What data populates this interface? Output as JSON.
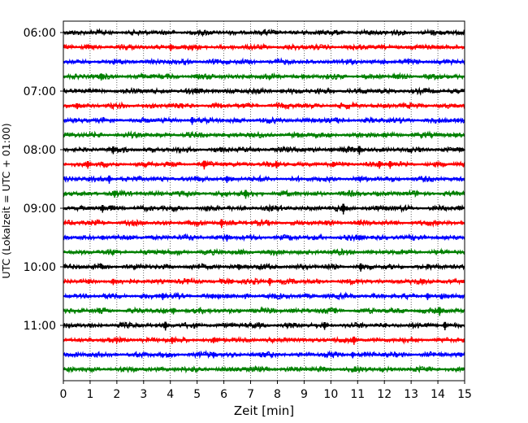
{
  "chart_data": {
    "type": "line",
    "title": "",
    "xlabel": "Zeit  [min]",
    "ylabel": "UTC (Lokalzeit = UTC + 01:00)",
    "xlim": [
      0,
      15
    ],
    "x_ticks": [
      "0",
      "1",
      "2",
      "3",
      "4",
      "5",
      "6",
      "7",
      "8",
      "9",
      "10",
      "11",
      "12",
      "13",
      "14",
      "15"
    ],
    "y_ticks": [
      "06:00",
      "07:00",
      "08:00",
      "09:00",
      "10:00",
      "11:00"
    ],
    "grid": "vertical dotted lines at each minute",
    "trace_colors": [
      "#000000",
      "#ff0000",
      "#0000ff",
      "#008000"
    ],
    "traces": [
      {
        "start": "06:00",
        "color": "#000000",
        "spikes": [
          [
            8.0,
            0.18
          ],
          [
            9.6,
            0.28
          ]
        ]
      },
      {
        "start": "06:15",
        "color": "#ff0000",
        "spikes": [
          [
            4.05,
            0.55
          ],
          [
            4.8,
            0.3
          ],
          [
            14.1,
            0.2
          ]
        ]
      },
      {
        "start": "06:30",
        "color": "#0000ff",
        "spikes": [
          [
            12.0,
            0.22
          ]
        ]
      },
      {
        "start": "06:45",
        "color": "#008000",
        "spikes": [
          [
            1.45,
            0.55
          ],
          [
            9.0,
            0.25
          ],
          [
            12.4,
            0.2
          ]
        ]
      },
      {
        "start": "07:00",
        "color": "#000000",
        "spikes": [
          [
            3.15,
            0.25
          ],
          [
            8.2,
            0.2
          ]
        ]
      },
      {
        "start": "07:15",
        "color": "#ff0000",
        "spikes": [
          [
            0.55,
            0.45
          ]
        ]
      },
      {
        "start": "07:30",
        "color": "#0000ff",
        "spikes": [
          [
            4.85,
            0.6
          ],
          [
            6.5,
            0.25
          ],
          [
            9.4,
            0.25
          ]
        ]
      },
      {
        "start": "07:45",
        "color": "#008000",
        "spikes": [
          [
            12.0,
            0.35
          ],
          [
            14.7,
            0.25
          ]
        ]
      },
      {
        "start": "08:00",
        "color": "#000000",
        "spikes": [
          [
            1.9,
            0.6
          ],
          [
            10.05,
            0.35
          ],
          [
            10.5,
            0.35
          ],
          [
            11.1,
            0.7
          ],
          [
            14.9,
            0.3
          ]
        ]
      },
      {
        "start": "08:15",
        "color": "#ff0000",
        "spikes": [
          [
            0.95,
            0.6
          ],
          [
            5.3,
            0.7
          ],
          [
            8.0,
            0.55
          ],
          [
            11.85,
            0.6
          ],
          [
            12.25,
            0.6
          ]
        ]
      },
      {
        "start": "08:30",
        "color": "#0000ff",
        "spikes": [
          [
            1.75,
            0.65
          ],
          [
            6.15,
            0.55
          ],
          [
            11.1,
            0.3
          ]
        ]
      },
      {
        "start": "08:45",
        "color": "#008000",
        "spikes": [
          [
            1.95,
            0.55
          ],
          [
            6.85,
            0.7
          ]
        ]
      },
      {
        "start": "09:00",
        "color": "#000000",
        "spikes": [
          [
            1.5,
            0.6
          ],
          [
            10.5,
            0.85
          ],
          [
            12.1,
            0.35
          ],
          [
            14.85,
            0.3
          ]
        ]
      },
      {
        "start": "09:15",
        "color": "#ff0000",
        "spikes": [
          [
            5.95,
            0.7
          ],
          [
            11.1,
            0.3
          ]
        ]
      },
      {
        "start": "09:30",
        "color": "#0000ff",
        "spikes": [
          [
            1.5,
            0.35
          ],
          [
            6.15,
            0.55
          ],
          [
            11.1,
            0.4
          ]
        ]
      },
      {
        "start": "09:45",
        "color": "#008000",
        "spikes": [
          [
            3.8,
            0.3
          ],
          [
            6.65,
            0.3
          ]
        ]
      },
      {
        "start": "10:00",
        "color": "#000000",
        "spikes": [
          [
            1.5,
            0.35
          ],
          [
            6.6,
            0.45
          ],
          [
            11.15,
            0.65
          ]
        ]
      },
      {
        "start": "10:15",
        "color": "#ff0000",
        "spikes": [
          [
            1.9,
            0.5
          ],
          [
            6.3,
            0.3
          ],
          [
            7.75,
            0.6
          ],
          [
            13.45,
            0.35
          ]
        ]
      },
      {
        "start": "10:30",
        "color": "#0000ff",
        "spikes": [
          [
            3.75,
            0.55
          ],
          [
            6.15,
            0.3
          ],
          [
            13.65,
            0.55
          ]
        ]
      },
      {
        "start": "10:45",
        "color": "#008000",
        "spikes": [
          [
            4.15,
            0.5
          ],
          [
            8.6,
            0.3
          ],
          [
            14.1,
            0.7
          ]
        ]
      },
      {
        "start": "11:00",
        "color": "#000000",
        "spikes": [
          [
            3.85,
            0.7
          ],
          [
            9.8,
            0.6
          ],
          [
            14.3,
            0.65
          ]
        ]
      },
      {
        "start": "11:15",
        "color": "#ff0000",
        "spikes": [
          [
            4.1,
            0.55
          ],
          [
            5.65,
            0.45
          ],
          [
            10.9,
            0.65
          ]
        ]
      },
      {
        "start": "11:30",
        "color": "#0000ff",
        "spikes": [
          [
            5.65,
            0.5
          ],
          [
            10.85,
            0.5
          ]
        ]
      },
      {
        "start": "11:45",
        "color": "#008000",
        "spikes": []
      }
    ]
  }
}
